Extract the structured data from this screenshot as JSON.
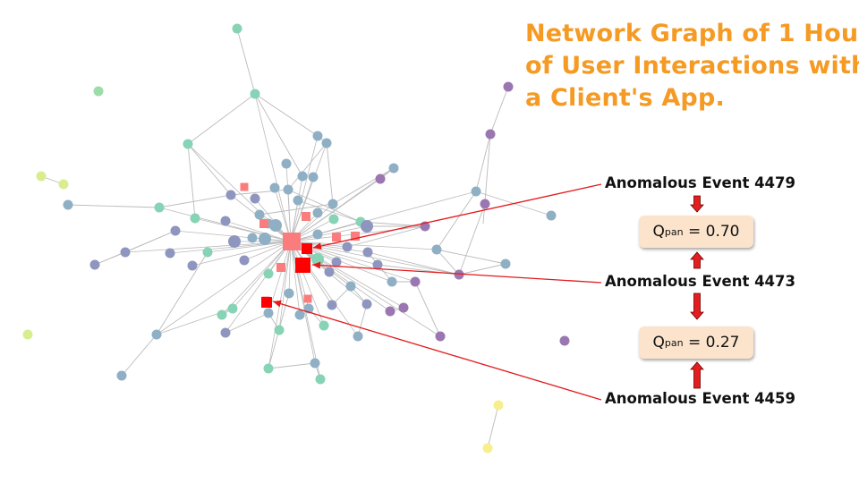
{
  "title_lines": [
    "Network Graph of 1 Hour",
    "of User Interactions with",
    "a Client's App."
  ],
  "annotations": {
    "event_4479": "Anomalous Event 4479",
    "event_4473": "Anomalous Event 4473",
    "event_4459": "Anomalous Event 4459"
  },
  "scores": [
    {
      "symbol": "Q",
      "subscript": "pan",
      "equals": " = ",
      "value": "0.70"
    },
    {
      "symbol": "Q",
      "subscript": "pan",
      "equals": " = ",
      "value": "0.27"
    }
  ],
  "colors": {
    "title": "#F59A23",
    "anomaly": "#FF0000",
    "anomaly_light": "#FB7C7C",
    "edge": "#BBBBBB",
    "score_box": "#FCE4CC",
    "node_palette": [
      "#8FAFC5",
      "#8E95BF",
      "#87D3B5",
      "#9A77B0",
      "#9ADDA9",
      "#D8EE8E",
      "#F7EE8C"
    ]
  },
  "legend_icons": [
    "arrow-down-icon",
    "arrow-up-icon"
  ]
}
